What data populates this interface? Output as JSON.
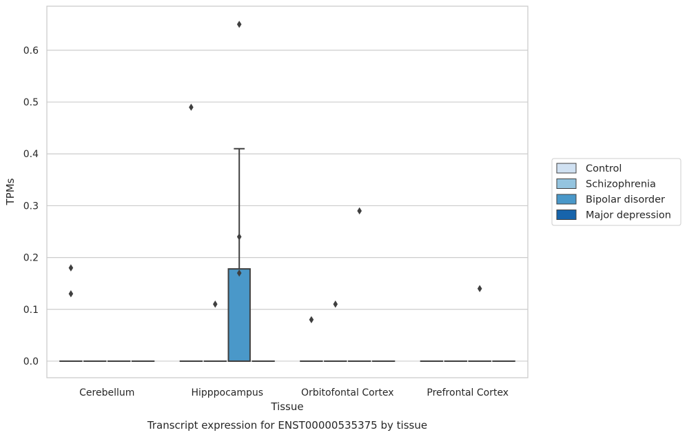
{
  "chart_data": {
    "type": "box",
    "xlabel": "Tissue",
    "ylabel": "TPMs",
    "caption": "Transcript expression for ENST00000535375 by tissue",
    "categories": [
      "Cerebellum",
      "Hipppocampus",
      "Orbitofontal Cortex",
      "Prefrontal Cortex"
    ],
    "ylim": [
      -0.032,
      0.685
    ],
    "yticks": [
      0.0,
      0.1,
      0.2,
      0.3,
      0.4,
      0.5,
      0.6
    ],
    "ytick_labels": [
      "0.0",
      "0.1",
      "0.2",
      "0.3",
      "0.4",
      "0.5",
      "0.6"
    ],
    "grid": "horizontal",
    "legend_position": "right",
    "series": [
      {
        "name": "Control",
        "color": "#d0e1f2"
      },
      {
        "name": "Schizophrenia",
        "color": "#94c4df"
      },
      {
        "name": "Bipolar disorder",
        "color": "#4a98c9"
      },
      {
        "name": "Major depression",
        "color": "#1764ab"
      }
    ],
    "boxes": [
      {
        "category": 0,
        "series": 0,
        "q1": 0,
        "median": 0,
        "q3": 0,
        "whisker_low": 0,
        "whisker_high": 0,
        "outliers": [
          0.18,
          0.13
        ]
      },
      {
        "category": 0,
        "series": 1,
        "q1": 0,
        "median": 0,
        "q3": 0,
        "whisker_low": 0,
        "whisker_high": 0,
        "outliers": []
      },
      {
        "category": 0,
        "series": 2,
        "q1": 0,
        "median": 0,
        "q3": 0,
        "whisker_low": 0,
        "whisker_high": 0,
        "outliers": []
      },
      {
        "category": 0,
        "series": 3,
        "q1": 0,
        "median": 0,
        "q3": 0,
        "whisker_low": 0,
        "whisker_high": 0,
        "outliers": []
      },
      {
        "category": 1,
        "series": 0,
        "q1": 0,
        "median": 0,
        "q3": 0,
        "whisker_low": 0,
        "whisker_high": 0,
        "outliers": [
          0.49
        ]
      },
      {
        "category": 1,
        "series": 1,
        "q1": 0,
        "median": 0,
        "q3": 0,
        "whisker_low": 0,
        "whisker_high": 0,
        "outliers": [
          0.11
        ]
      },
      {
        "category": 1,
        "series": 2,
        "q1": 0,
        "median": 0,
        "q3": 0.178,
        "whisker_low": 0,
        "whisker_high": 0.41,
        "outliers": [
          0.65,
          0.24,
          0.17
        ]
      },
      {
        "category": 1,
        "series": 3,
        "q1": 0,
        "median": 0,
        "q3": 0,
        "whisker_low": 0,
        "whisker_high": 0,
        "outliers": []
      },
      {
        "category": 2,
        "series": 0,
        "q1": 0,
        "median": 0,
        "q3": 0,
        "whisker_low": 0,
        "whisker_high": 0,
        "outliers": [
          0.08
        ]
      },
      {
        "category": 2,
        "series": 1,
        "q1": 0,
        "median": 0,
        "q3": 0,
        "whisker_low": 0,
        "whisker_high": 0,
        "outliers": [
          0.11
        ]
      },
      {
        "category": 2,
        "series": 2,
        "q1": 0,
        "median": 0,
        "q3": 0,
        "whisker_low": 0,
        "whisker_high": 0,
        "outliers": [
          0.29
        ]
      },
      {
        "category": 2,
        "series": 3,
        "q1": 0,
        "median": 0,
        "q3": 0,
        "whisker_low": 0,
        "whisker_high": 0,
        "outliers": []
      },
      {
        "category": 3,
        "series": 0,
        "q1": 0,
        "median": 0,
        "q3": 0,
        "whisker_low": 0,
        "whisker_high": 0,
        "outliers": []
      },
      {
        "category": 3,
        "series": 1,
        "q1": 0,
        "median": 0,
        "q3": 0,
        "whisker_low": 0,
        "whisker_high": 0,
        "outliers": []
      },
      {
        "category": 3,
        "series": 2,
        "q1": 0,
        "median": 0,
        "q3": 0,
        "whisker_low": 0,
        "whisker_high": 0,
        "outliers": [
          0.14
        ]
      },
      {
        "category": 3,
        "series": 3,
        "q1": 0,
        "median": 0,
        "q3": 0,
        "whisker_low": 0,
        "whisker_high": 0,
        "outliers": []
      }
    ]
  }
}
